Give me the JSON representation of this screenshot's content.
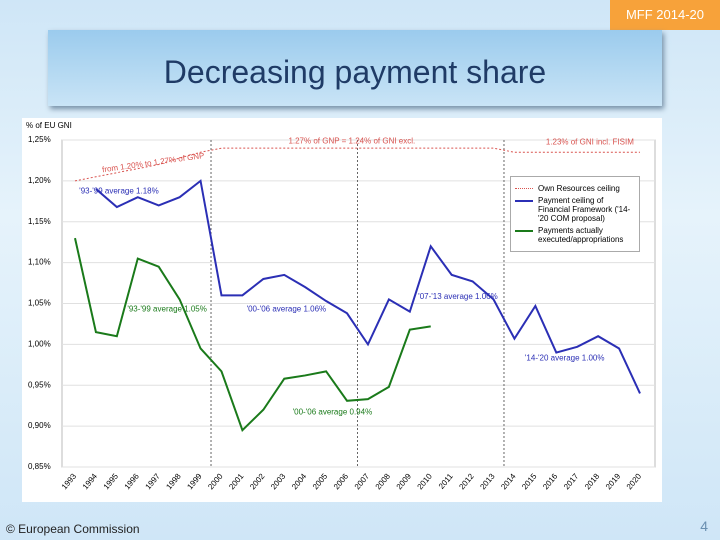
{
  "slide": {
    "tag": "MFF 2014-20",
    "footer": "© European Commission",
    "page": "4"
  },
  "chart_data": {
    "type": "line",
    "title": "Decreasing payment share",
    "y_label": "% of EU GNI",
    "x": [
      1993,
      1994,
      1995,
      1996,
      1997,
      1998,
      1999,
      2000,
      2001,
      2002,
      2003,
      2004,
      2005,
      2006,
      2007,
      2008,
      2009,
      2010,
      2011,
      2012,
      2013,
      2014,
      2015,
      2016,
      2017,
      2018,
      2019,
      2020
    ],
    "series": [
      {
        "name": "Own Resources ceiling",
        "color": "#d9534f",
        "dash": true,
        "values": [
          1.2,
          1.205,
          1.21,
          1.215,
          1.22,
          1.228,
          1.235,
          1.24,
          1.24,
          1.24,
          1.24,
          1.24,
          1.24,
          1.24,
          1.24,
          1.24,
          1.24,
          1.24,
          1.24,
          1.24,
          1.24,
          1.235,
          1.235,
          1.235,
          1.235,
          1.235,
          1.235,
          1.235
        ]
      },
      {
        "name": "Payment ceiling of Financial Framework ('14-'20 COM proposal)",
        "color": "#2b2fb5",
        "values": [
          null,
          1.19,
          1.168,
          1.18,
          1.17,
          1.18,
          1.2,
          1.06,
          1.06,
          1.08,
          1.085,
          1.07,
          1.053,
          1.038,
          1.0,
          1.055,
          1.04,
          1.12,
          1.085,
          1.077,
          1.055,
          1.007,
          1.047,
          0.99,
          0.997,
          1.01,
          0.995,
          0.94
        ]
      },
      {
        "name": "Payments actually executed/appropriations",
        "color": "#1a7a1a",
        "values": [
          1.13,
          1.015,
          1.01,
          1.105,
          1.095,
          1.055,
          0.995,
          0.967,
          0.895,
          0.92,
          0.958,
          0.962,
          0.967,
          0.931,
          0.933,
          0.948,
          1.018,
          1.022,
          null,
          null,
          null,
          null,
          null,
          null,
          null,
          null,
          null,
          null
        ]
      }
    ],
    "ylim": [
      0.85,
      1.25
    ],
    "yticks": [
      {
        "value": 0.85,
        "label": "0,85%"
      },
      {
        "value": 0.9,
        "label": "0,90%"
      },
      {
        "value": 0.95,
        "label": "0,95%"
      },
      {
        "value": 1.0,
        "label": "1,00%"
      },
      {
        "value": 1.05,
        "label": "1,05%"
      },
      {
        "value": 1.1,
        "label": "1,10%"
      },
      {
        "value": 1.15,
        "label": "1,15%"
      },
      {
        "value": 1.2,
        "label": "1,20%"
      },
      {
        "value": 1.25,
        "label": "1,25%"
      }
    ],
    "annotations": [
      "from 1.20% to 1.27% of GNP",
      "1.27% of GNP = 1.24% of GNI excl.",
      "1.23% of GNI incl. FISIM",
      "'93-'99 average 1.18%",
      "'93-'99 average 1.05%",
      "'00-'06 average 1.06%",
      "'00-'06 average 0.94%",
      "'07-'13 average 1.06%",
      "'14-'20 average 1.00%"
    ]
  }
}
